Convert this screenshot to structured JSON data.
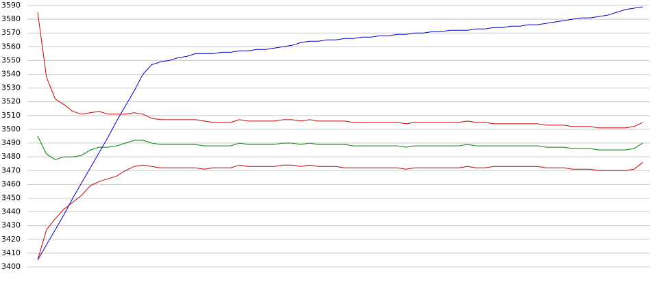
{
  "chart_data": {
    "type": "line",
    "categories": [
      null,
      null,
      null,
      null,
      null,
      null,
      null,
      null,
      null,
      null,
      null,
      null,
      null,
      null,
      null,
      null,
      null,
      null,
      null,
      null,
      null,
      null,
      null,
      null,
      null,
      null,
      null,
      null,
      null,
      null,
      null,
      null,
      null,
      null,
      null,
      null,
      null,
      null,
      null,
      null,
      null,
      null,
      null,
      null,
      null,
      null,
      null,
      null,
      null,
      null,
      null,
      null,
      null,
      null,
      null,
      null,
      null,
      null,
      null,
      null,
      null,
      null,
      null,
      null,
      null,
      null,
      null,
      null,
      null,
      null
    ],
    "series": [
      {
        "color": "#c00000",
        "values": [
          3585,
          3538,
          3522,
          3518,
          3513,
          3511,
          3512,
          3513,
          3511,
          3511,
          3511,
          3512,
          3511,
          3508,
          3507,
          3507,
          3507,
          3507,
          3507,
          3506,
          3505,
          3505,
          3505,
          3507,
          3506,
          3506,
          3506,
          3506,
          3507,
          3507,
          3506,
          3507,
          3506,
          3506,
          3506,
          3506,
          3505,
          3505,
          3505,
          3505,
          3505,
          3505,
          3504,
          3505,
          3505,
          3505,
          3505,
          3505,
          3505,
          3506,
          3505,
          3505,
          3504,
          3504,
          3504,
          3504,
          3504,
          3504,
          3503,
          3503,
          3503,
          3502,
          3502,
          3502,
          3501,
          3501,
          3501,
          3501,
          3502,
          3505
        ]
      },
      {
        "color": "#008000",
        "values": [
          3495,
          3482,
          3478,
          3480,
          3480,
          3481,
          3485,
          3487,
          3487,
          3488,
          3490,
          3492,
          3492,
          3490,
          3489,
          3489,
          3489,
          3489,
          3489,
          3488,
          3488,
          3488,
          3488,
          3490,
          3489,
          3489,
          3489,
          3489,
          3490,
          3490,
          3489,
          3490,
          3489,
          3489,
          3489,
          3489,
          3488,
          3488,
          3488,
          3488,
          3488,
          3488,
          3487,
          3488,
          3488,
          3488,
          3488,
          3488,
          3488,
          3489,
          3488,
          3488,
          3488,
          3488,
          3488,
          3488,
          3488,
          3488,
          3487,
          3487,
          3487,
          3486,
          3486,
          3486,
          3485,
          3485,
          3485,
          3485,
          3486,
          3490
        ]
      },
      {
        "color": "#c00000",
        "values": [
          3405,
          3427,
          3435,
          3442,
          3447,
          3452,
          3459,
          3462,
          3464,
          3466,
          3470,
          3473,
          3474,
          3473,
          3472,
          3472,
          3472,
          3472,
          3472,
          3471,
          3472,
          3472,
          3472,
          3474,
          3473,
          3473,
          3473,
          3473,
          3474,
          3474,
          3473,
          3474,
          3473,
          3473,
          3473,
          3472,
          3472,
          3472,
          3472,
          3472,
          3472,
          3472,
          3471,
          3472,
          3472,
          3472,
          3472,
          3472,
          3472,
          3473,
          3472,
          3472,
          3473,
          3473,
          3473,
          3473,
          3473,
          3473,
          3472,
          3472,
          3472,
          3471,
          3471,
          3471,
          3470,
          3470,
          3470,
          3470,
          3471,
          3476
        ]
      },
      {
        "color": "#0000c0",
        "values": [
          3405,
          3416,
          3427,
          3438,
          3450,
          3461,
          3472,
          3483,
          3494,
          3506,
          3517,
          3528,
          3540,
          3547,
          3549,
          3550,
          3552,
          3553,
          3555,
          3555,
          3555,
          3556,
          3556,
          3557,
          3557,
          3558,
          3558,
          3559,
          3560,
          3561,
          3563,
          3564,
          3564,
          3565,
          3565,
          3566,
          3566,
          3567,
          3567,
          3568,
          3568,
          3569,
          3569,
          3570,
          3570,
          3571,
          3571,
          3572,
          3572,
          3572,
          3573,
          3573,
          3574,
          3574,
          3575,
          3575,
          3576,
          3576,
          3577,
          3578,
          3579,
          3580,
          3581,
          3581,
          3582,
          3583,
          3585,
          3587,
          3588,
          3589
        ]
      }
    ],
    "ylim": [
      3400,
      3590
    ],
    "yticks": [
      3400,
      3410,
      3420,
      3430,
      3440,
      3450,
      3460,
      3470,
      3480,
      3490,
      3500,
      3510,
      3520,
      3530,
      3540,
      3550,
      3560,
      3570,
      3580,
      3590
    ],
    "grid": true
  }
}
